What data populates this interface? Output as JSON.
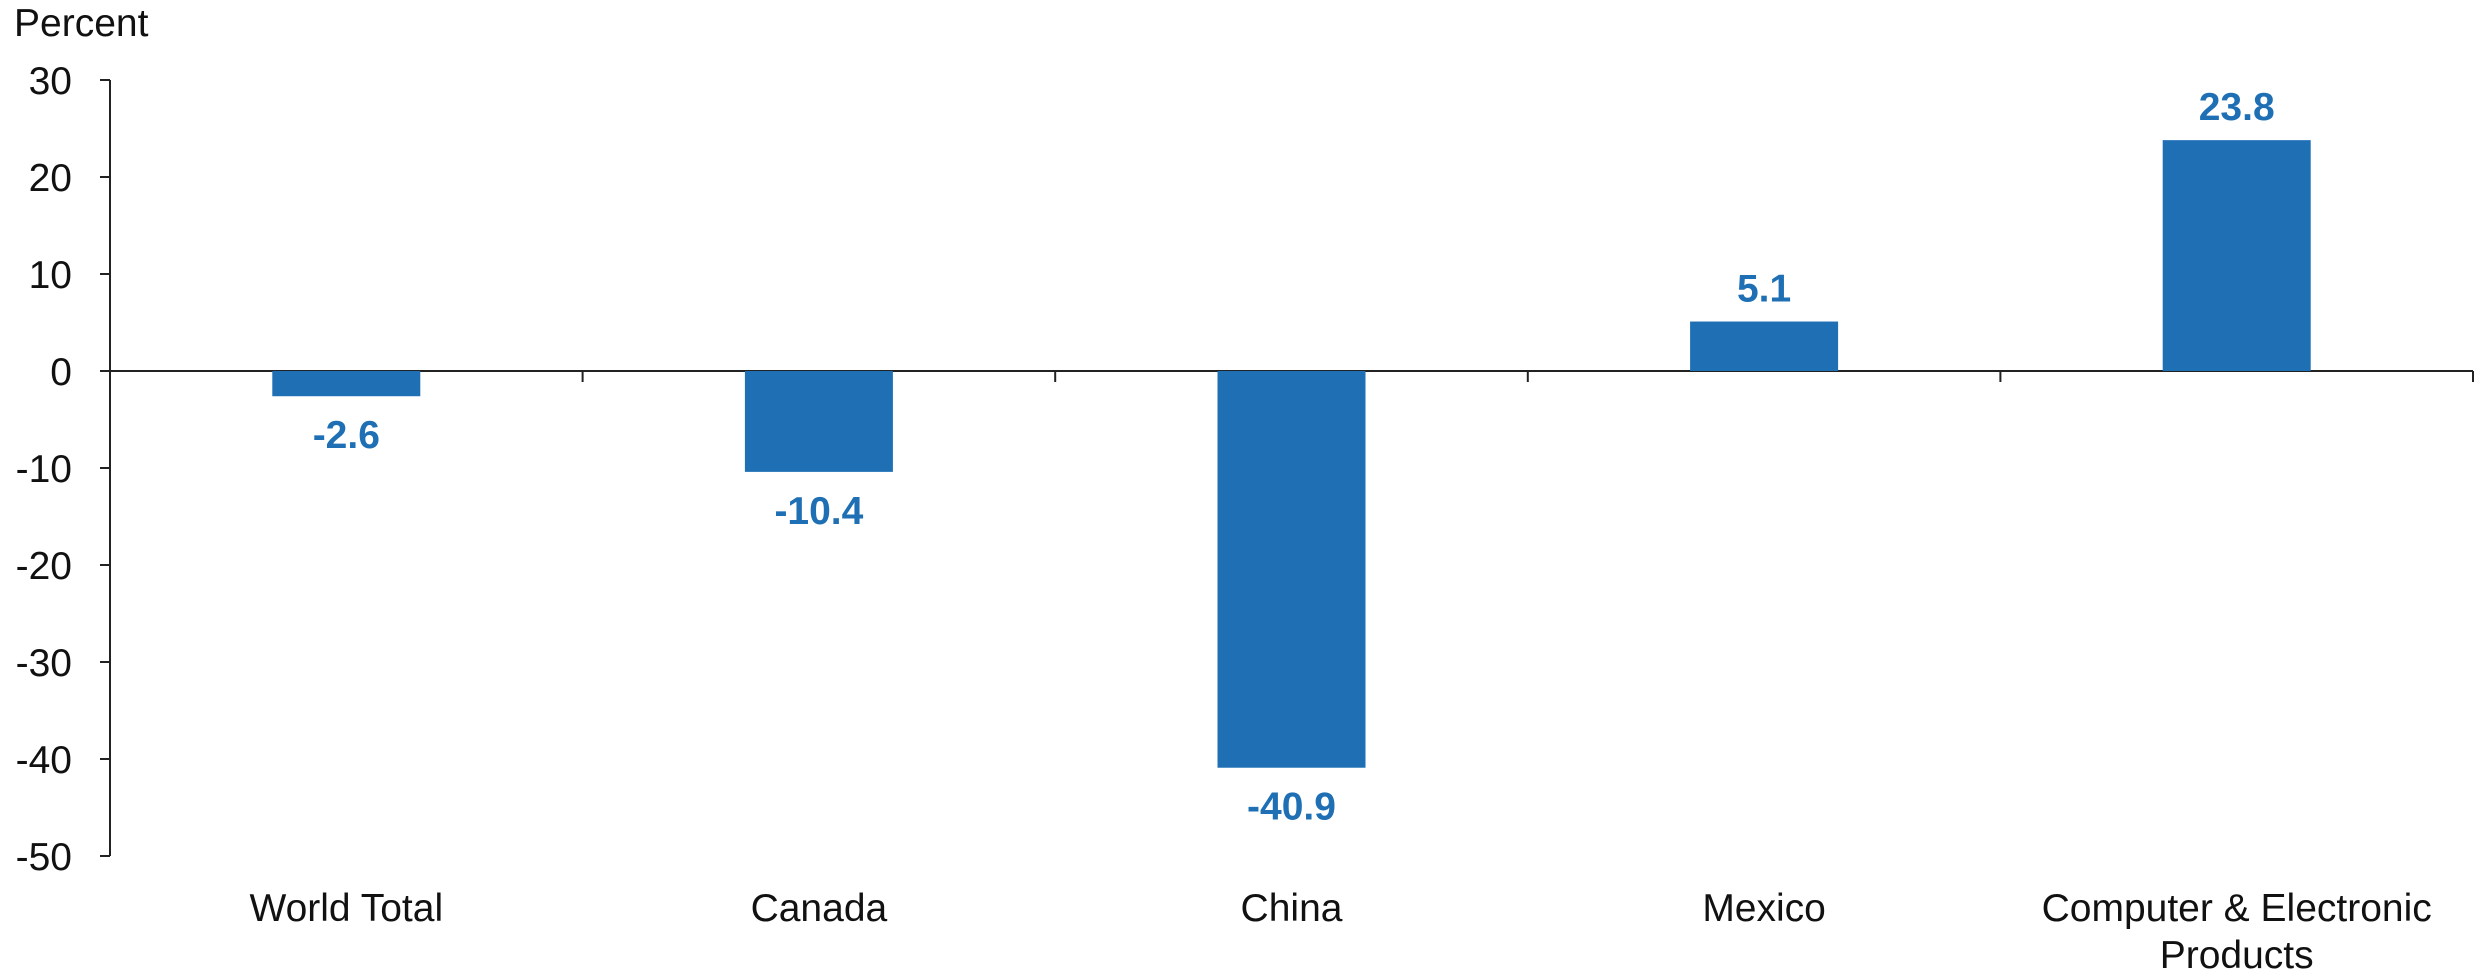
{
  "chart_data": {
    "type": "bar",
    "ylabel": "Percent",
    "categories": [
      [
        "World Total"
      ],
      [
        "Canada"
      ],
      [
        "China"
      ],
      [
        "Mexico"
      ],
      [
        "Computer & Electronic",
        "Products"
      ]
    ],
    "values": [
      -2.6,
      -10.4,
      -40.9,
      5.1,
      23.8
    ],
    "value_labels": [
      "-2.6",
      "-10.4",
      "-40.9",
      "5.1",
      "23.8"
    ],
    "ylim": [
      -50,
      30
    ],
    "yticks": [
      "30",
      "20",
      "10",
      "0",
      "-10",
      "-20",
      "-30",
      "-40",
      "-50"
    ],
    "bar_color": "#1f6fb5",
    "label_color": "#1f6fb5",
    "grid": false,
    "legend": "none"
  }
}
